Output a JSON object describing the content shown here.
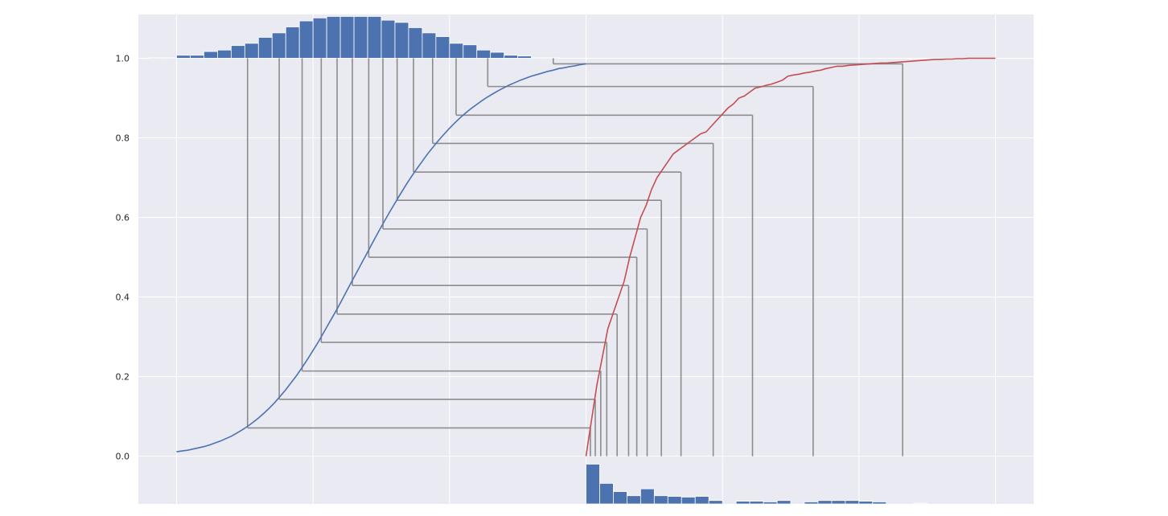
{
  "chart_data": {
    "type": "line",
    "yticks": [
      "0.0",
      "0.2",
      "0.4",
      "0.6",
      "0.8",
      "1.0"
    ],
    "ytick_values": [
      0.0,
      0.2,
      0.4,
      0.6,
      0.8,
      1.0
    ],
    "xlim": [
      -0.07,
      1.57
    ],
    "ylim": [
      -0.12,
      1.11
    ],
    "grid": true,
    "x_gridlines": [
      0.0,
      0.25,
      0.5,
      0.75,
      1.0,
      1.25,
      1.5
    ],
    "colors": {
      "background": "#eaeaf2",
      "grid": "#ffffff",
      "normal": "#4c72b0",
      "empirical": "#c44e52",
      "connector": "#8c8c8c"
    },
    "series": [
      {
        "x": [
          0.0,
          0.01,
          0.02,
          0.03,
          0.04,
          0.05,
          0.06,
          0.07,
          0.08,
          0.09,
          0.1,
          0.11,
          0.12,
          0.13,
          0.14,
          0.15,
          0.16,
          0.17,
          0.18,
          0.19,
          0.2,
          0.21,
          0.22,
          0.23,
          0.24,
          0.25,
          0.26,
          0.27,
          0.28,
          0.29,
          0.3,
          0.31,
          0.32,
          0.33,
          0.34,
          0.35,
          0.36,
          0.37,
          0.38,
          0.39,
          0.4,
          0.41,
          0.42,
          0.43,
          0.44,
          0.45,
          0.46,
          0.47,
          0.48,
          0.49,
          0.5,
          0.51,
          0.52,
          0.53,
          0.54,
          0.55,
          0.56,
          0.57,
          0.58,
          0.59,
          0.6,
          0.61,
          0.62,
          0.63,
          0.64,
          0.65,
          0.66,
          0.67,
          0.68,
          0.69,
          0.7,
          0.71,
          0.72,
          0.73,
          0.74,
          0.75
        ],
        "y": [
          0.011,
          0.013,
          0.015,
          0.018,
          0.021,
          0.024,
          0.028,
          0.033,
          0.038,
          0.044,
          0.05,
          0.058,
          0.066,
          0.075,
          0.085,
          0.096,
          0.108,
          0.121,
          0.135,
          0.151,
          0.167,
          0.185,
          0.203,
          0.223,
          0.244,
          0.266,
          0.288,
          0.312,
          0.336,
          0.36,
          0.385,
          0.411,
          0.437,
          0.462,
          0.488,
          0.513,
          0.539,
          0.564,
          0.589,
          0.613,
          0.636,
          0.659,
          0.681,
          0.702,
          0.722,
          0.741,
          0.76,
          0.777,
          0.794,
          0.809,
          0.824,
          0.838,
          0.851,
          0.863,
          0.874,
          0.884,
          0.894,
          0.903,
          0.911,
          0.919,
          0.926,
          0.933,
          0.939,
          0.945,
          0.95,
          0.955,
          0.959,
          0.963,
          0.967,
          0.97,
          0.974,
          0.976,
          0.979,
          0.981,
          0.984,
          0.986
        ]
      },
      {
        "x": [
          0.75,
          0.76,
          0.77,
          0.78,
          0.79,
          0.8,
          0.81,
          0.82,
          0.83,
          0.84,
          0.85,
          0.86,
          0.87,
          0.88,
          0.89,
          0.9,
          0.91,
          0.92,
          0.93,
          0.94,
          0.95,
          0.96,
          0.97,
          0.98,
          0.99,
          1.0,
          1.01,
          1.02,
          1.03,
          1.04,
          1.05,
          1.06,
          1.07,
          1.08,
          1.09,
          1.1,
          1.11,
          1.12,
          1.13,
          1.14,
          1.15,
          1.16,
          1.17,
          1.18,
          1.19,
          1.2,
          1.21,
          1.22,
          1.23,
          1.24,
          1.25,
          1.26,
          1.27,
          1.28,
          1.29,
          1.3,
          1.31,
          1.32,
          1.33,
          1.34,
          1.35,
          1.36,
          1.37,
          1.38,
          1.39,
          1.4,
          1.41,
          1.42,
          1.43,
          1.44,
          1.45,
          1.46,
          1.47,
          1.48,
          1.49,
          1.5
        ],
        "y": [
          0.0,
          0.09,
          0.18,
          0.25,
          0.32,
          0.36,
          0.4,
          0.44,
          0.5,
          0.55,
          0.6,
          0.63,
          0.67,
          0.7,
          0.72,
          0.74,
          0.76,
          0.77,
          0.78,
          0.79,
          0.8,
          0.81,
          0.815,
          0.83,
          0.845,
          0.86,
          0.875,
          0.885,
          0.9,
          0.905,
          0.915,
          0.925,
          0.928,
          0.932,
          0.935,
          0.94,
          0.945,
          0.955,
          0.958,
          0.96,
          0.963,
          0.965,
          0.968,
          0.97,
          0.974,
          0.977,
          0.98,
          0.98,
          0.982,
          0.983,
          0.984,
          0.985,
          0.986,
          0.987,
          0.988,
          0.988,
          0.989,
          0.99,
          0.991,
          0.992,
          0.993,
          0.994,
          0.995,
          0.996,
          0.997,
          0.997,
          0.998,
          0.998,
          0.999,
          0.999,
          1.0,
          1.0,
          1.0,
          1.0,
          1.0,
          1.0
        ]
      }
    ],
    "connectors": {
      "quantiles": [
        0.071,
        0.143,
        0.214,
        0.286,
        0.357,
        0.429,
        0.5,
        0.571,
        0.643,
        0.714,
        0.786,
        0.857,
        0.929,
        0.986
      ],
      "normal_x": [
        0.13,
        0.188,
        0.23,
        0.265,
        0.294,
        0.322,
        0.352,
        0.378,
        0.404,
        0.434,
        0.469,
        0.512,
        0.57,
        0.69
      ],
      "empirical_x": [
        0.758,
        0.767,
        0.777,
        0.788,
        0.807,
        0.828,
        0.843,
        0.862,
        0.888,
        0.924,
        0.983,
        1.055,
        1.166,
        1.33
      ]
    },
    "histograms": [
      {
        "x_start": -0.05,
        "bin_width": 0.025,
        "counts": [
          1,
          1,
          4,
          4,
          9,
          11,
          17,
          20,
          28,
          34,
          42,
          50,
          54,
          56,
          56,
          56,
          56,
          51,
          48,
          41,
          34,
          29,
          20,
          18,
          11,
          8,
          4,
          3,
          1,
          1
        ],
        "max_count": 56,
        "baseline": 1.0,
        "height": 0.105,
        "direction": "up"
      },
      {
        "x_start": 0.75,
        "bin_width": 0.025,
        "counts": [
          58,
          30,
          18,
          12,
          22,
          12,
          11,
          10,
          11,
          5,
          0,
          4,
          4,
          3,
          5,
          0,
          3,
          5,
          5,
          5,
          4,
          3,
          0,
          0,
          1
        ],
        "max_count": 58,
        "baseline": -0.12,
        "height": 0.1,
        "direction": "up"
      }
    ]
  }
}
